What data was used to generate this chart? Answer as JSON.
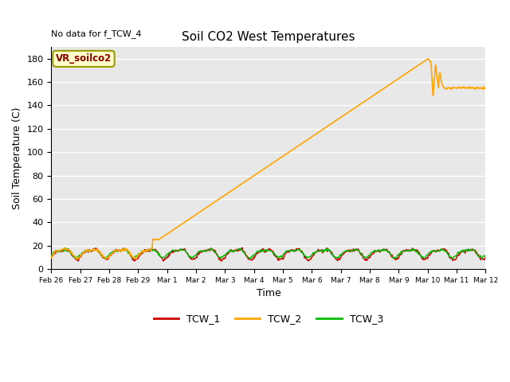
{
  "title": "Soil CO2 West Temperatures",
  "no_data_label": "No data for f_TCW_4",
  "annotation_label": "VR_soilco2",
  "xlabel": "Time",
  "ylabel": "Soil Temperature (C)",
  "ylim": [
    0,
    190
  ],
  "yticks": [
    0,
    20,
    40,
    60,
    80,
    100,
    120,
    140,
    160,
    180
  ],
  "tcw1_color": "#cc0000",
  "tcw2_color": "#ffa500",
  "tcw3_color": "#00bb00",
  "legend_entries": [
    "TCW_1",
    "TCW_2",
    "TCW_3"
  ],
  "x_tick_labels": [
    "Feb 26",
    "Feb 27",
    "Feb 28",
    "Feb 29",
    "Mar 1",
    "Mar 2",
    "Mar 3",
    "Mar 4",
    "Mar 5",
    "Mar 6",
    "Mar 7",
    "Mar 8",
    "Mar 9",
    "Mar 10",
    "Mar 11",
    "Mar 12"
  ],
  "n_days": 15,
  "pts_per_day": 48
}
